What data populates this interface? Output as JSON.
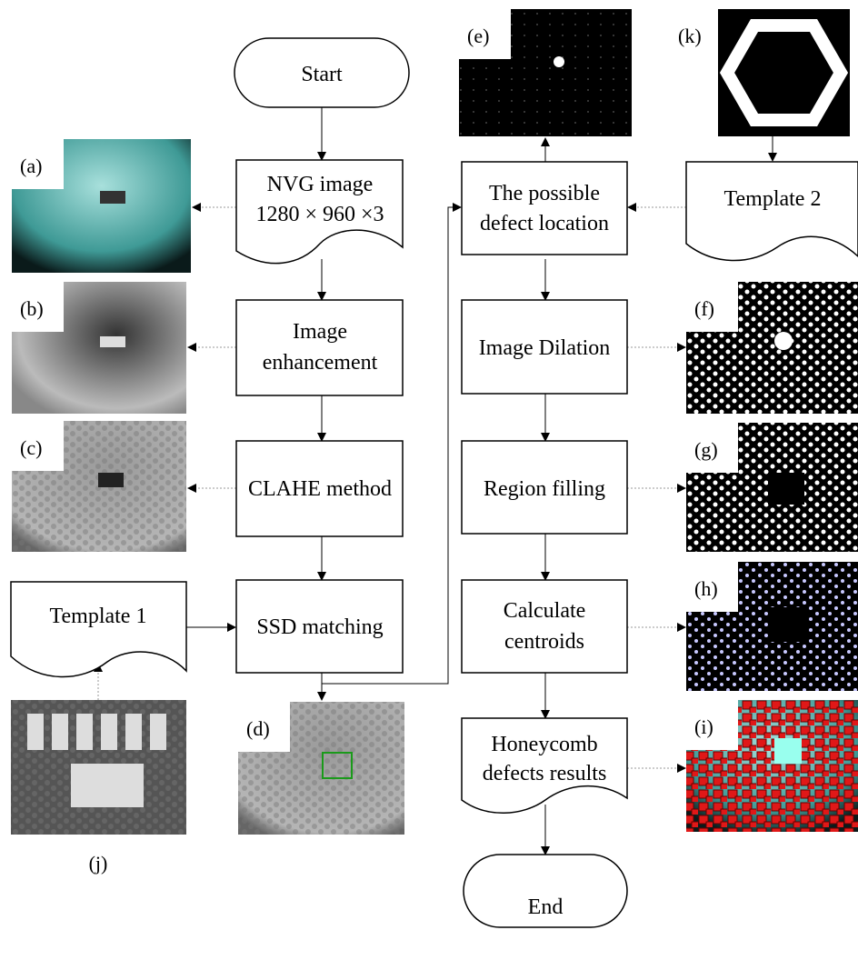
{
  "nodes": {
    "start": "Start",
    "nvg_image": [
      "NVG image",
      "1280 × 960 ×3"
    ],
    "image_enhancement": [
      "Image",
      "enhancement"
    ],
    "clahe": "CLAHE method",
    "ssd": "SSD matching",
    "template_1": "Template 1",
    "defect_location": [
      "The possible",
      "defect location"
    ],
    "dilation": "Image Dilation",
    "region_filling": "Region filling",
    "centroids": [
      "Calculate",
      "centroids"
    ],
    "results": [
      "Honeycomb",
      "defects results"
    ],
    "end": "End",
    "template_2": "Template 2"
  },
  "image_labels": {
    "a": "(a)",
    "b": "(b)",
    "c": "(c)",
    "d": "(d)",
    "e": "(e)",
    "f": "(f)",
    "g": "(g)",
    "h": "(h)",
    "i": "(i)",
    "j": "(j)",
    "k": "(k)"
  }
}
